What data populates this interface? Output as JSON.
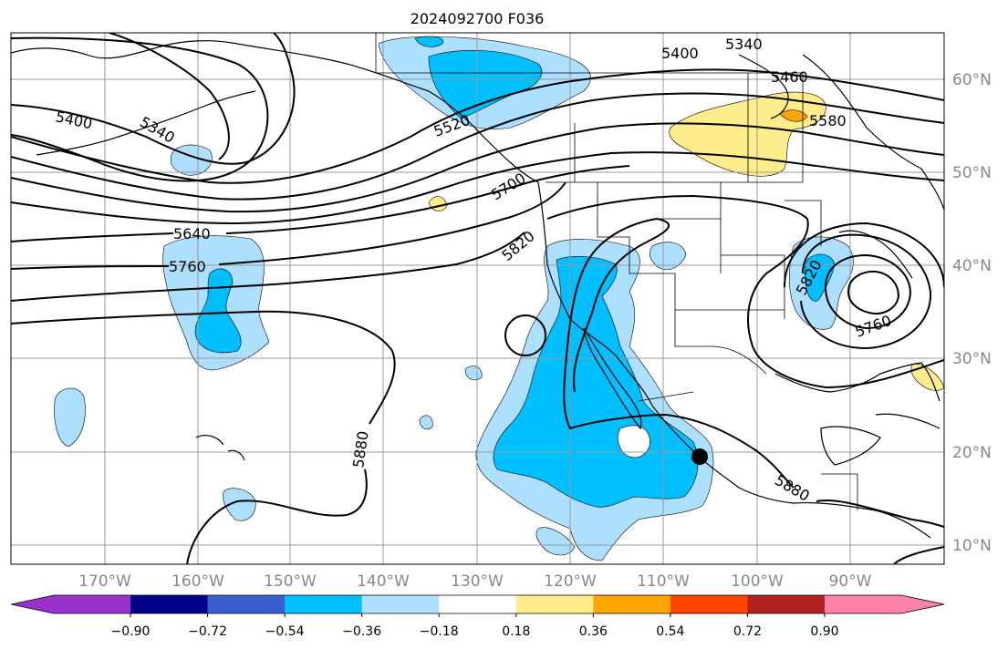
{
  "title": "2024092700 F036",
  "lon_labels": [
    "170°W",
    "160°W",
    "150°W",
    "140°W",
    "130°W",
    "120°W",
    "110°W",
    "100°W",
    "90°W"
  ],
  "lat_labels": [
    "60°N",
    "50°N",
    "40°N",
    "30°N",
    "20°N",
    "10°N"
  ],
  "contour_labels": [
    "5400",
    "5340",
    "5400",
    "5460",
    "5340",
    "5580",
    "5640",
    "5760",
    "5820",
    "5700",
    "5820",
    "5760",
    "5880",
    "5880",
    "5520"
  ],
  "colorbar": {
    "colors": [
      "#9932CC",
      "#00008B",
      "#3A5FCD",
      "#00BFFF",
      "#ADDFFF",
      "#FFFFFF",
      "#FFEC8B",
      "#FFA500",
      "#FF4500",
      "#B22222",
      "#FF82AB"
    ],
    "tick_labels": [
      "−0.90",
      "−0.72",
      "−0.54",
      "−0.36",
      "−0.18",
      "0.18",
      "0.36",
      "0.54",
      "0.72",
      "0.90"
    ]
  },
  "colors": {
    "contour": "#000000",
    "grid": "#999999",
    "land_outline": "#000000",
    "marker": "#000000"
  },
  "marker": "storm-center-dot"
}
